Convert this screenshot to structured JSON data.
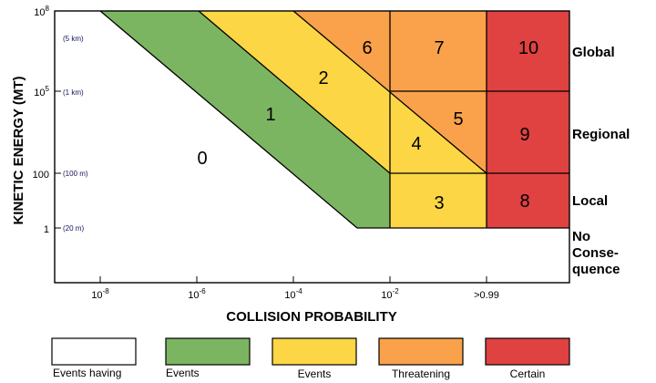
{
  "axes": {
    "xlabel": "COLLISION PROBABILITY",
    "ylabel": "KINETIC ENERGY (MT)",
    "x_ticks": [
      {
        "base": "10",
        "exp": "-8"
      },
      {
        "base": "10",
        "exp": "-6"
      },
      {
        "base": "10",
        "exp": "-4"
      },
      {
        "base": "10",
        "exp": "-2"
      },
      {
        "base": ">0.99",
        "exp": ""
      }
    ],
    "y_ticks": [
      {
        "base": "10",
        "exp": "8",
        "size": "(5 km)"
      },
      {
        "base": "10",
        "exp": "5",
        "size": "(1 km)"
      },
      {
        "base": "100",
        "exp": "",
        "size": "(100 m)"
      },
      {
        "base": "1",
        "exp": "",
        "size": "(20 m)"
      }
    ]
  },
  "regions": [
    "0",
    "1",
    "2",
    "3",
    "4",
    "5",
    "6",
    "7",
    "8",
    "9",
    "10"
  ],
  "impact_levels": {
    "global": "Global",
    "regional": "Regional",
    "local": "Local",
    "none_lines": [
      "No",
      "Conse-",
      "quence"
    ]
  },
  "legend": [
    {
      "label": "Events having",
      "color": "#ffffff"
    },
    {
      "label": "Events",
      "color": "#7cb561"
    },
    {
      "label": "Events",
      "color": "#fcd644"
    },
    {
      "label": "Threatening",
      "color": "#f9a24b"
    },
    {
      "label": "Certain",
      "color": "#e04141"
    }
  ],
  "colors": {
    "green": "#7cb561",
    "yellow": "#fcd644",
    "orange": "#f9a24b",
    "red": "#e04141"
  }
}
